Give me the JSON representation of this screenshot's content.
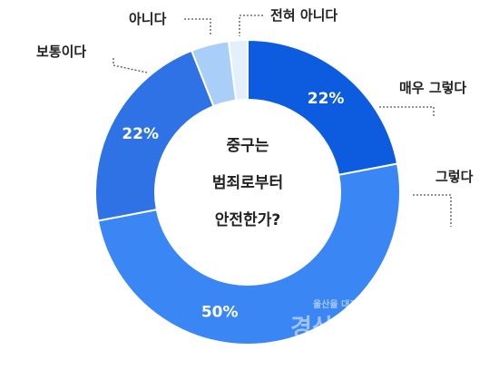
{
  "chart_data": {
    "type": "pie",
    "variant": "donut",
    "center_title": [
      "중구는",
      "범죄로부터",
      "안전한가?"
    ],
    "slices": [
      {
        "label": "매우 그렇다",
        "value": 22,
        "display": "22%",
        "color": "#0d5ce0"
      },
      {
        "label": "그렇다",
        "value": 50,
        "display": "50%",
        "color": "#3a86f5"
      },
      {
        "label": "보통이다",
        "value": 22,
        "display": "22%",
        "color": "#2f72e6"
      },
      {
        "label": "아니다",
        "value": 4,
        "display": "",
        "color": "#a9cef8"
      },
      {
        "label": "전혀 아니다",
        "value": 2,
        "display": "",
        "color": "#e4effc"
      }
    ]
  },
  "watermark": {
    "small": "울산을 대표하는 신문",
    "brand": "경상일보"
  }
}
